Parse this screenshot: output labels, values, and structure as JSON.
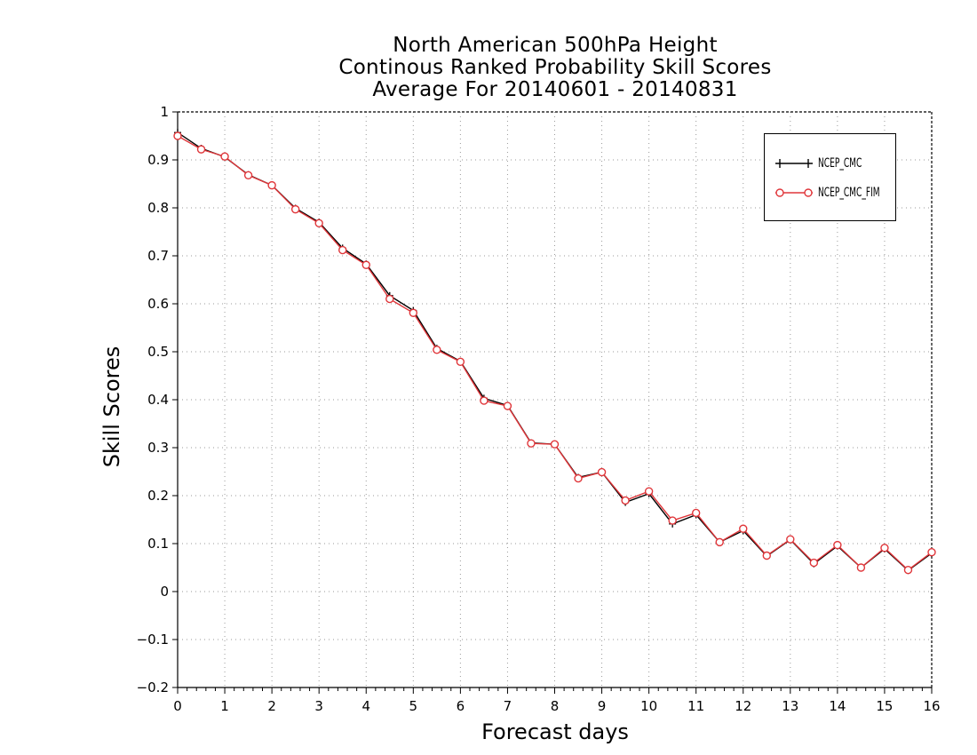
{
  "chart_data": {
    "type": "line",
    "title": [
      "North American 500hPa Height",
      "Continous Ranked Probability Skill Scores",
      "Average For 20140601 - 20140831"
    ],
    "xlabel": "Forecast days",
    "ylabel": "Skill Scores",
    "xlim": [
      0,
      16
    ],
    "ylim": [
      -0.2,
      1
    ],
    "xticks": [
      "0",
      "1",
      "2",
      "3",
      "4",
      "5",
      "6",
      "7",
      "8",
      "9",
      "10",
      "11",
      "12",
      "13",
      "14",
      "15",
      "16"
    ],
    "yticks": [
      "−0.2",
      "−0.1",
      "0",
      "0.1",
      "0.2",
      "0.3",
      "0.4",
      "0.5",
      "0.6",
      "0.7",
      "0.8",
      "0.9",
      "1"
    ],
    "grid": true,
    "legend_position": "top-right",
    "x": [
      0,
      0.5,
      1,
      1.5,
      2,
      2.5,
      3,
      3.5,
      4,
      4.5,
      5,
      5.5,
      6,
      6.5,
      7,
      7.5,
      8,
      8.5,
      9,
      9.5,
      10,
      10.5,
      11,
      11.5,
      12,
      12.5,
      13,
      13.5,
      14,
      14.5,
      15,
      15.5,
      16
    ],
    "series": [
      {
        "name": "NCEP_CMC",
        "color": "#000000",
        "marker": "plus",
        "values": [
          0.957,
          0.924,
          0.906,
          0.869,
          0.847,
          0.799,
          0.77,
          0.716,
          0.683,
          0.617,
          0.586,
          0.507,
          0.48,
          0.403,
          0.388,
          0.31,
          0.307,
          0.238,
          0.249,
          0.186,
          0.204,
          0.141,
          0.16,
          0.103,
          0.127,
          0.074,
          0.108,
          0.058,
          0.095,
          0.05,
          0.089,
          0.044,
          0.08
        ]
      },
      {
        "name": "NCEP_CMC_FIM",
        "color": "#e0363a",
        "marker": "circle",
        "values": [
          0.95,
          0.922,
          0.907,
          0.868,
          0.847,
          0.797,
          0.768,
          0.712,
          0.681,
          0.61,
          0.581,
          0.504,
          0.479,
          0.398,
          0.387,
          0.309,
          0.307,
          0.236,
          0.249,
          0.19,
          0.209,
          0.148,
          0.164,
          0.103,
          0.131,
          0.075,
          0.109,
          0.06,
          0.097,
          0.05,
          0.091,
          0.045,
          0.082
        ]
      }
    ]
  }
}
